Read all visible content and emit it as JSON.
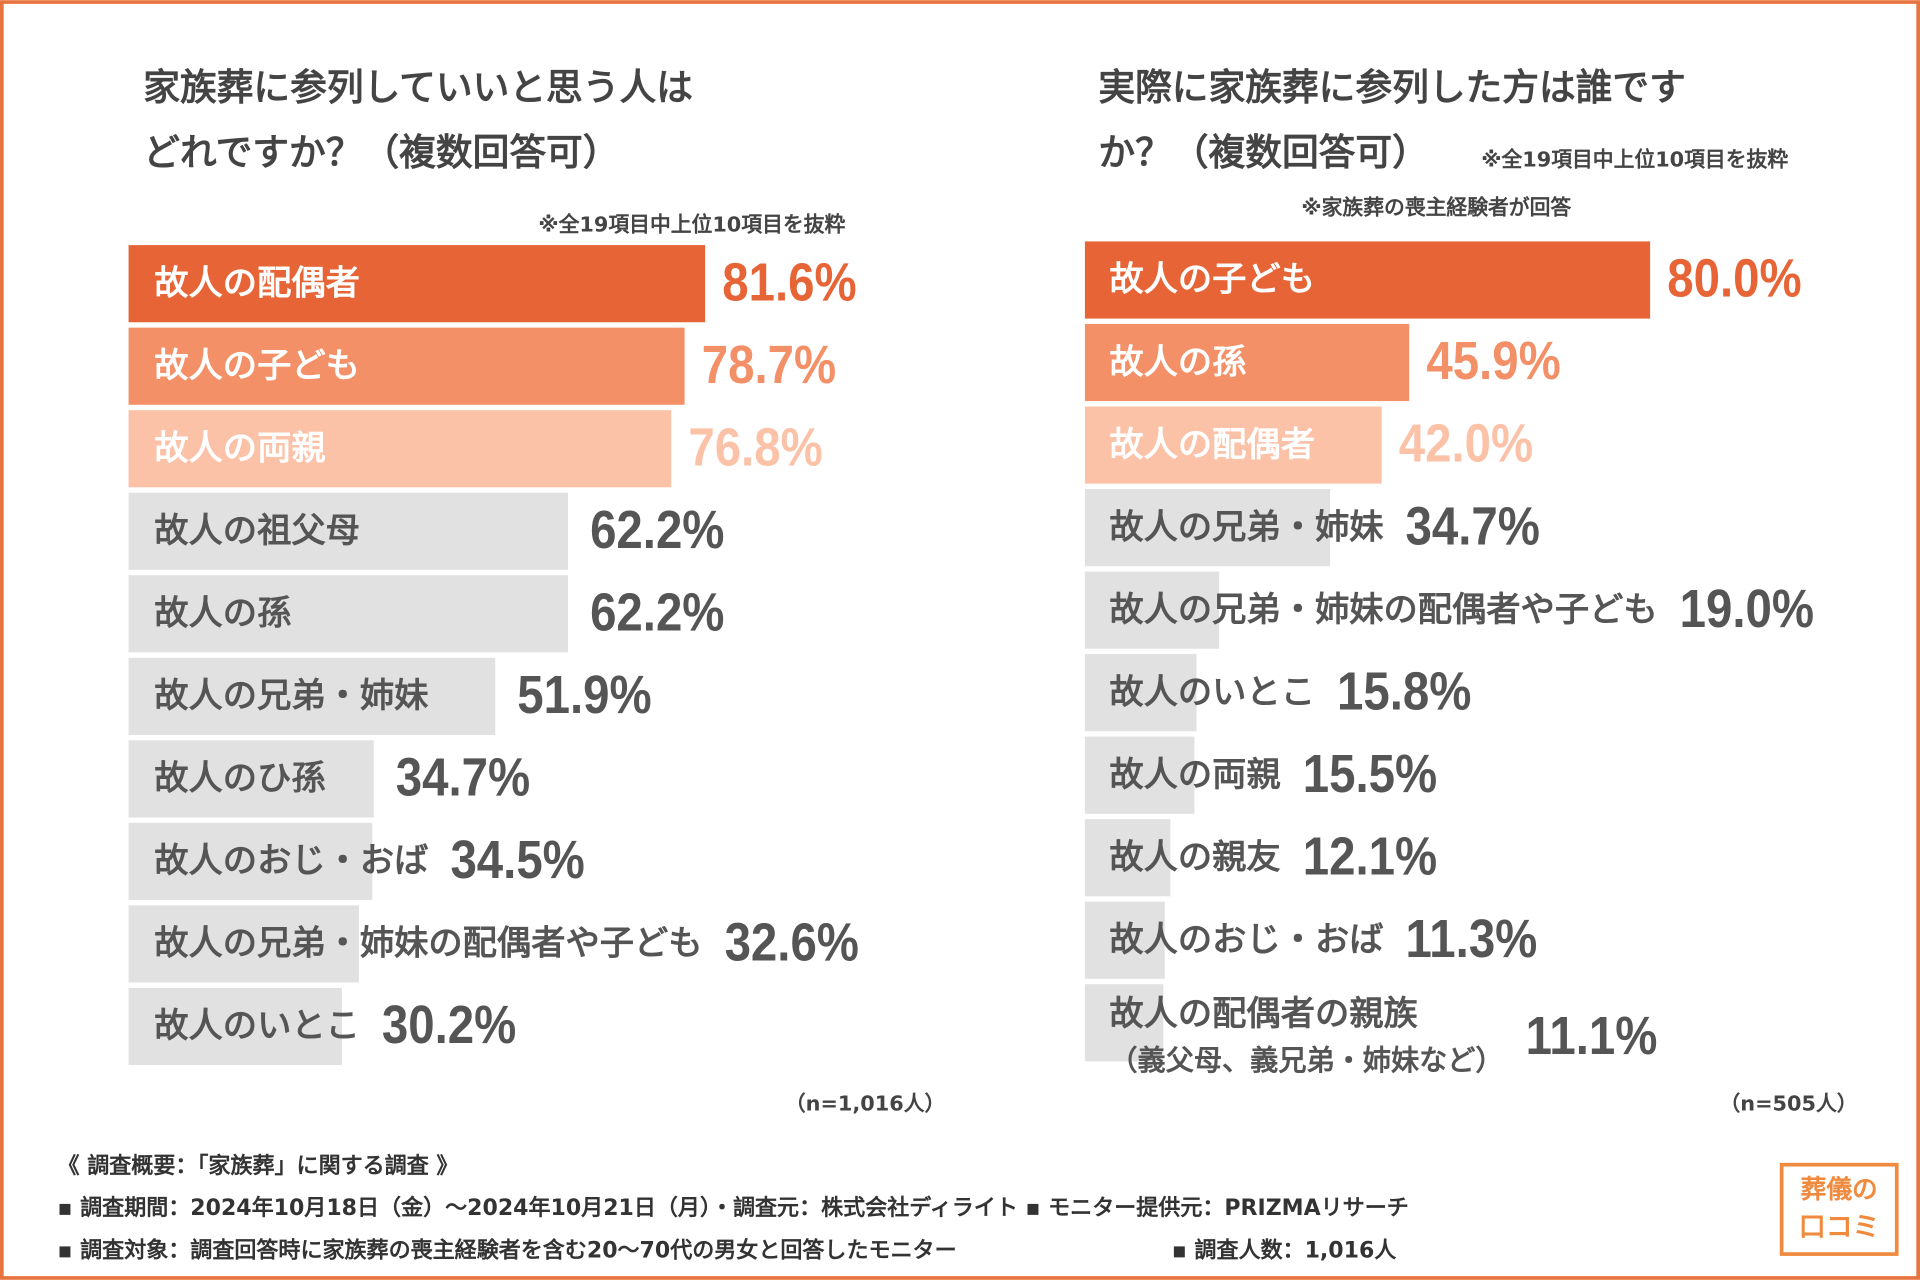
{
  "chart_data": [
    {
      "type": "bar",
      "orientation": "horizontal",
      "title": [
        "家族葬に参列していいと思う人は",
        "どれですか？（複数回答可）"
      ],
      "notes": [
        "※全19項目中上位10項目を抜粋"
      ],
      "categories": [
        "故人の配偶者",
        "故人の子ども",
        "故人の両親",
        "故人の祖父母",
        "故人の孫",
        "故人の兄弟・姉妹",
        "故人のひ孫",
        "故人のおじ・おば",
        "故人の兄弟・姉妹の配偶者や子ども",
        "故人のいとこ"
      ],
      "values": [
        81.6,
        78.7,
        76.8,
        62.2,
        62.2,
        51.9,
        34.7,
        34.5,
        32.6,
        30.2
      ],
      "value_labels": [
        "81.6%",
        "78.7%",
        "76.8%",
        "62.2%",
        "62.2%",
        "51.9%",
        "34.7%",
        "34.5%",
        "32.6%",
        "30.2%"
      ],
      "colors": [
        "#e66435",
        "#f39067",
        "#fbc2a8",
        "#e1e1e1",
        "#e1e1e1",
        "#e1e1e1",
        "#e1e1e1",
        "#e1e1e1",
        "#e1e1e1",
        "#e1e1e1"
      ],
      "sample_size": "（n=1,016人）"
    },
    {
      "type": "bar",
      "orientation": "horizontal",
      "title": [
        "実際に家族葬に参列した方は誰です",
        "か？（複数回答可）"
      ],
      "notes": [
        "※全19項目中上位10項目を抜粋",
        "※家族葬の喪主経験者が回答"
      ],
      "categories": [
        "故人の子ども",
        "故人の孫",
        "故人の配偶者",
        "故人の兄弟・姉妹",
        "故人の兄弟・姉妹の配偶者や子ども",
        "故人のいとこ",
        "故人の両親",
        "故人の親友",
        "故人のおじ・おば",
        "故人の配偶者の親族"
      ],
      "category_annotation": {
        "index": 9,
        "text": "（義父母、義兄弟・姉妹など）"
      },
      "values": [
        80.0,
        45.9,
        42.0,
        34.7,
        19.0,
        15.8,
        15.5,
        12.1,
        11.3,
        11.1
      ],
      "value_labels": [
        "80.0%",
        "45.9%",
        "42.0%",
        "34.7%",
        "19.0%",
        "15.8%",
        "15.5%",
        "12.1%",
        "11.3%",
        "11.1%"
      ],
      "colors": [
        "#e66435",
        "#f39067",
        "#fbc2a8",
        "#e1e1e1",
        "#e1e1e1",
        "#e1e1e1",
        "#e1e1e1",
        "#e1e1e1",
        "#e1e1e1",
        "#e1e1e1"
      ],
      "sample_size": "（n=505人）"
    }
  ],
  "footer": [
    "《 調査概要：「家族葬」に関する調査 》",
    "▪ 調査期間：2024年10月18日（金）～2024年10月21日（月）・調査元：株式会社ディライト ▪ モニター提供元：PRIZMAリサーチ",
    "▪ 調査対象：調査回答時に家族葬の喪主経験者を含む20～70代の男女と回答したモニター",
    "▪ 調査人数：1,016人"
  ],
  "logo": [
    "葬儀の",
    "口コミ"
  ]
}
